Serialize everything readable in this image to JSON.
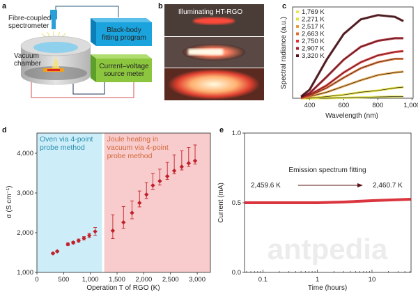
{
  "panel_labels": {
    "a": "a",
    "b": "b",
    "c": "c",
    "d": "d",
    "e": "e"
  },
  "panel_a": {
    "spectrometer_label_1": "Fibre-coupled",
    "spectrometer_label_2": "spectrometer",
    "chamber_label_1": "Vacuum",
    "chamber_label_2": "chamber",
    "box1_line1": "Black-body",
    "box1_line2": "fitting program",
    "box2_line1": "Current–voltage",
    "box2_line2": "source meter",
    "colors": {
      "blue_box": "#1aa3dc",
      "green_box": "#8cc63f",
      "chamber": "#c8c8c8",
      "sample": "#e0261f"
    }
  },
  "panel_b": {
    "title": "Illuminating HT-RGO"
  },
  "watermark": "antpedia",
  "chart_data": [
    {
      "id": "c",
      "type": "line",
      "xlabel": "Wavelength (nm)",
      "ylabel": "Spectral radiance (a.u.)",
      "xlim": [
        300,
        1000
      ],
      "xticks": [
        "400",
        "600",
        "800",
        "1,000"
      ],
      "xtick_values": [
        400,
        600,
        800,
        1000
      ],
      "legend_position": "top-left",
      "x": [
        350,
        400,
        500,
        600,
        700,
        800,
        900,
        950
      ],
      "series": [
        {
          "name": "1,769 K",
          "color": "#e8e85a",
          "values": [
            0,
            0,
            0,
            0.005,
            0.01,
            0.015,
            0.02,
            0.02
          ]
        },
        {
          "name": "2,271 K",
          "color": "#e6e03a",
          "values": [
            0,
            0,
            0.02,
            0.04,
            0.07,
            0.09,
            0.12,
            0.13
          ]
        },
        {
          "name": "2,517 K",
          "color": "#e8a040",
          "values": [
            0,
            0.02,
            0.07,
            0.14,
            0.21,
            0.27,
            0.3,
            0.31
          ]
        },
        {
          "name": "2,663 K",
          "color": "#e07030",
          "values": [
            0,
            0.03,
            0.12,
            0.24,
            0.35,
            0.42,
            0.46,
            0.46
          ]
        },
        {
          "name": "2,750 K",
          "color": "#e03030",
          "values": [
            0.01,
            0.04,
            0.15,
            0.3,
            0.42,
            0.5,
            0.54,
            0.55
          ]
        },
        {
          "name": "2,907 K",
          "color": "#b01c28",
          "values": [
            0.01,
            0.06,
            0.25,
            0.45,
            0.6,
            0.67,
            0.7,
            0.7
          ]
        },
        {
          "name": "3,320 K",
          "color": "#5a1018",
          "values": [
            0.02,
            0.1,
            0.45,
            0.75,
            0.92,
            0.97,
            0.95,
            0.9
          ]
        }
      ],
      "ylim": [
        0,
        1
      ]
    },
    {
      "id": "d",
      "type": "scatter",
      "xlabel": "Operation T of RGO (K)",
      "ylabel": "σ (S cm⁻¹)",
      "xlim": [
        0,
        3300
      ],
      "ylim": [
        1000,
        4500
      ],
      "xticks": [
        "0",
        "500",
        "1,000",
        "1,500",
        "2,000",
        "2,500",
        "3,000"
      ],
      "xtick_values": [
        0,
        500,
        1000,
        1500,
        2000,
        2500,
        3000
      ],
      "yticks": [
        "1,000",
        "2,000",
        "3,000",
        "4,000"
      ],
      "ytick_values": [
        1000,
        2000,
        3000,
        4000
      ],
      "regions": [
        {
          "label_1": "Oven via 4-point",
          "label_2": "probe method",
          "from": 0,
          "to": 1220,
          "color": "#cdeef9",
          "text_color": "#2a8fb0"
        },
        {
          "label_1": "Joule heating in",
          "label_2": "vacuum via 4-point",
          "label_3": "probe method",
          "from": 1260,
          "to": 3300,
          "color": "#f8cccc",
          "text_color": "#d2693c"
        }
      ],
      "marker_color": "#c0202a",
      "points": [
        {
          "x": 300,
          "y": 1480,
          "err_lo": 20,
          "err_hi": 20
        },
        {
          "x": 380,
          "y": 1530,
          "err_lo": 20,
          "err_hi": 20
        },
        {
          "x": 580,
          "y": 1710,
          "err_lo": 30,
          "err_hi": 30
        },
        {
          "x": 680,
          "y": 1750,
          "err_lo": 30,
          "err_hi": 30
        },
        {
          "x": 780,
          "y": 1800,
          "err_lo": 40,
          "err_hi": 40
        },
        {
          "x": 880,
          "y": 1860,
          "err_lo": 40,
          "err_hi": 40
        },
        {
          "x": 980,
          "y": 1930,
          "err_lo": 50,
          "err_hi": 50
        },
        {
          "x": 1090,
          "y": 2030,
          "err_lo": 100,
          "err_hi": 100
        },
        {
          "x": 1420,
          "y": 2050,
          "err_lo": 200,
          "err_hi": 400
        },
        {
          "x": 1620,
          "y": 2260,
          "err_lo": 150,
          "err_hi": 400
        },
        {
          "x": 1780,
          "y": 2500,
          "err_lo": 150,
          "err_hi": 300
        },
        {
          "x": 1920,
          "y": 2750,
          "err_lo": 100,
          "err_hi": 300
        },
        {
          "x": 2050,
          "y": 2960,
          "err_lo": 100,
          "err_hi": 300
        },
        {
          "x": 2170,
          "y": 3190,
          "err_lo": 100,
          "err_hi": 300
        },
        {
          "x": 2300,
          "y": 3300,
          "err_lo": 100,
          "err_hi": 300
        },
        {
          "x": 2440,
          "y": 3420,
          "err_lo": 80,
          "err_hi": 350
        },
        {
          "x": 2570,
          "y": 3560,
          "err_lo": 80,
          "err_hi": 400
        },
        {
          "x": 2710,
          "y": 3660,
          "err_lo": 80,
          "err_hi": 400
        },
        {
          "x": 2840,
          "y": 3750,
          "err_lo": 80,
          "err_hi": 400
        },
        {
          "x": 2960,
          "y": 3810,
          "err_lo": 80,
          "err_hi": 400
        }
      ]
    },
    {
      "id": "e",
      "type": "line",
      "xlabel": "Time (hours)",
      "ylabel": "Current (mA)",
      "xscale": "log",
      "xlim": [
        0.046,
        52
      ],
      "ylim": [
        0,
        1
      ],
      "xticks": [
        "0.1",
        "1",
        "10"
      ],
      "xtick_values": [
        0.1,
        1,
        10
      ],
      "yticks": [
        "0.0",
        "0.5",
        "1.0"
      ],
      "ytick_values": [
        0,
        0.5,
        1
      ],
      "annotation_title": "Emission spectrum fitting",
      "annotation_start": "2,459.6 K",
      "annotation_end": "2,460.7 K",
      "series": [
        {
          "color": "#d4121c",
          "x": [
            0.046,
            0.1,
            1,
            3,
            10,
            52
          ],
          "values": [
            0.5,
            0.5,
            0.5,
            0.505,
            0.515,
            0.525
          ]
        }
      ]
    }
  ]
}
